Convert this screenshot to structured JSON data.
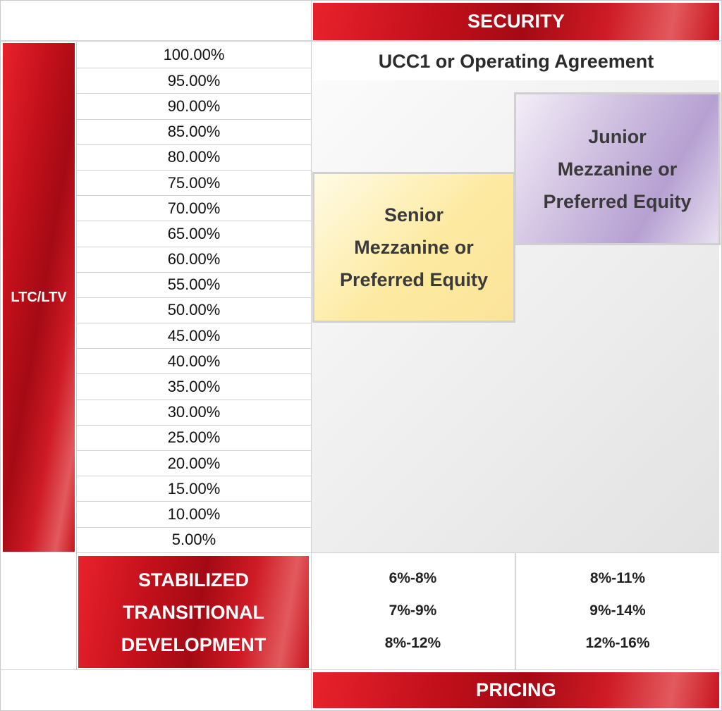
{
  "security": {
    "header": "SECURITY",
    "value": "UCC1 or Operating Agreement"
  },
  "ltv_axis": {
    "label": "LTC/LTV",
    "ticks": [
      "100.00%",
      "95.00%",
      "90.00%",
      "85.00%",
      "80.00%",
      "75.00%",
      "70.00%",
      "65.00%",
      "60.00%",
      "55.00%",
      "50.00%",
      "45.00%",
      "40.00%",
      "35.00%",
      "30.00%",
      "25.00%",
      "20.00%",
      "15.00%",
      "10.00%",
      "5.00%"
    ]
  },
  "tiers": {
    "senior": {
      "lines": [
        "Senior",
        "Mezzanine or",
        "Preferred Equity"
      ],
      "ltv_range_pct": [
        55,
        75
      ],
      "fill_color": "#fde9a3"
    },
    "junior": {
      "lines": [
        "Junior",
        "Mezzanine or",
        "Preferred Equity"
      ],
      "ltv_range_pct": [
        60,
        90
      ],
      "fill_color": "#c4b2da"
    }
  },
  "deal_types": [
    "STABILIZED",
    "TRANSITIONAL",
    "DEVELOPMENT"
  ],
  "pricing": {
    "header": "PRICING",
    "senior": [
      "6%-8%",
      "7%-9%",
      "8%-12%"
    ],
    "junior": [
      "8%-11%",
      "9%-14%",
      "12%-16%"
    ]
  },
  "colors": {
    "accent_red": "#c3101b",
    "border_gray": "#cfcfcf",
    "text_dark": "#2b2b2b"
  }
}
